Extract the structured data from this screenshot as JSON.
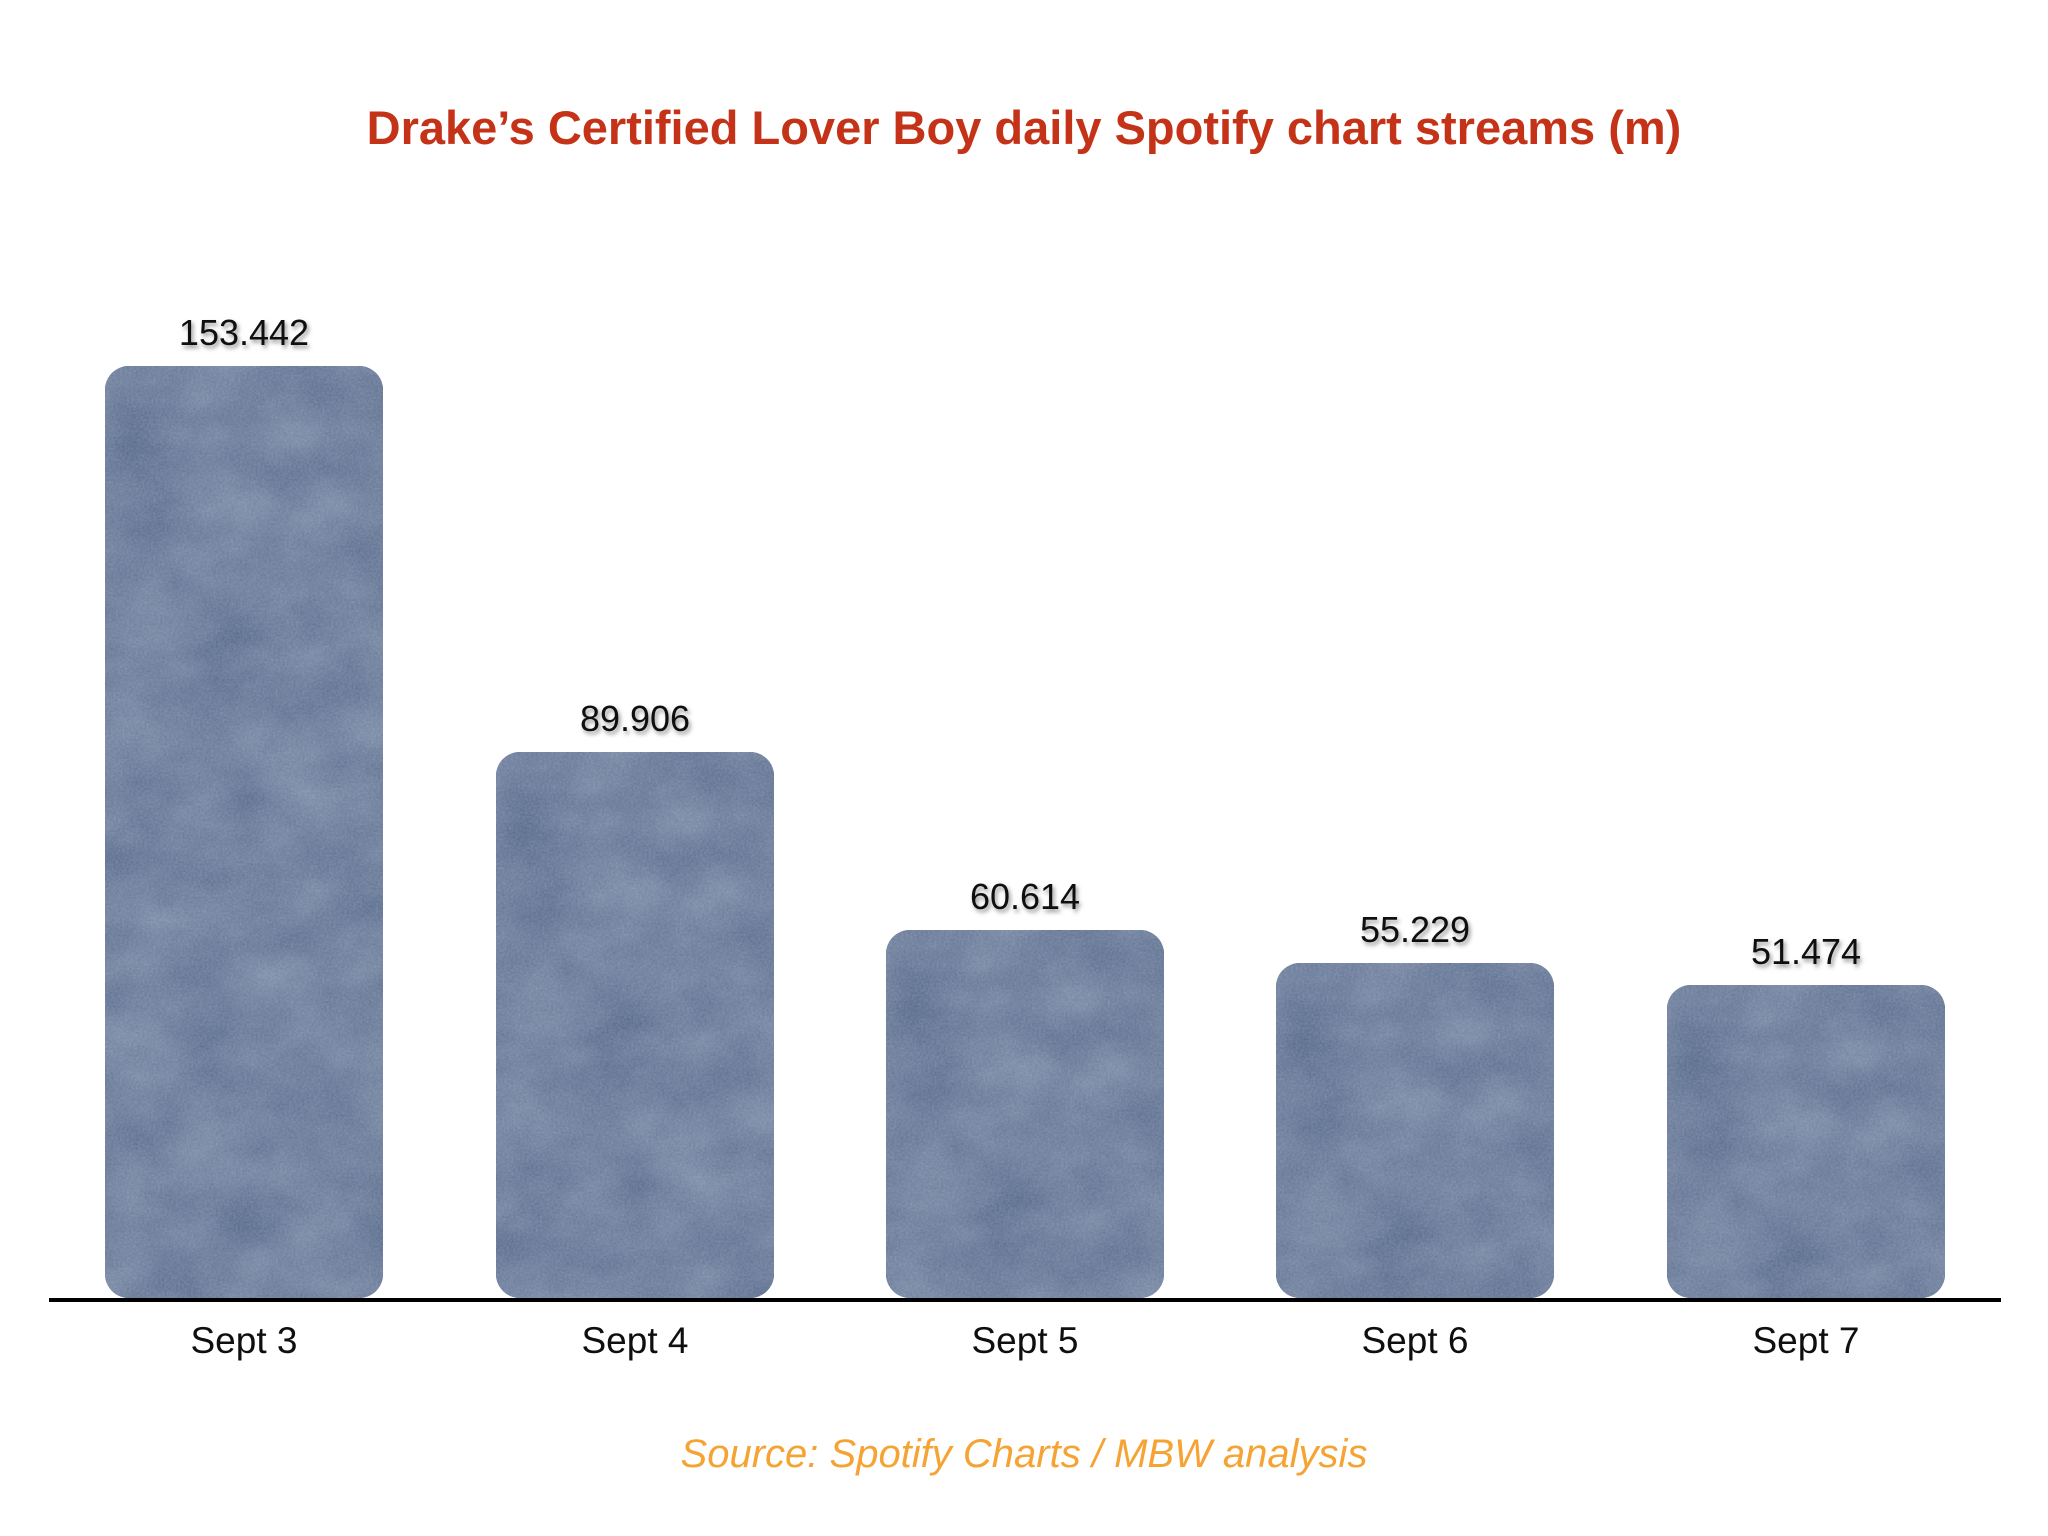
{
  "chart_data": {
    "type": "bar",
    "title": "Drake’s Certified Lover Boy daily Spotify chart streams (m)",
    "categories": [
      "Sept 3",
      "Sept 4",
      "Sept 5",
      "Sept 6",
      "Sept 7"
    ],
    "values": [
      153.442,
      89.906,
      60.614,
      55.229,
      51.474
    ],
    "value_labels": [
      "153.442",
      "89.906",
      "60.614",
      "55.229",
      "51.474"
    ],
    "xlabel": "",
    "ylabel": "",
    "ylim": [
      0,
      160
    ],
    "grid": false,
    "legend_position": "none",
    "y_axis_visible": false,
    "value_labels_visible": true,
    "bar_corner_radius": 24,
    "colors": {
      "background": "#ffffff",
      "bar_fill": "#485b7e",
      "bar_texture": "denim-noise-speckle",
      "title": "#c43318",
      "value_label": "#0f0f0f",
      "category_label": "#0f0f0f",
      "axis_line": "#000000"
    }
  },
  "footer": {
    "source_text": "Source: Spotify Charts / MBW analysis",
    "color": "#f5a434"
  }
}
